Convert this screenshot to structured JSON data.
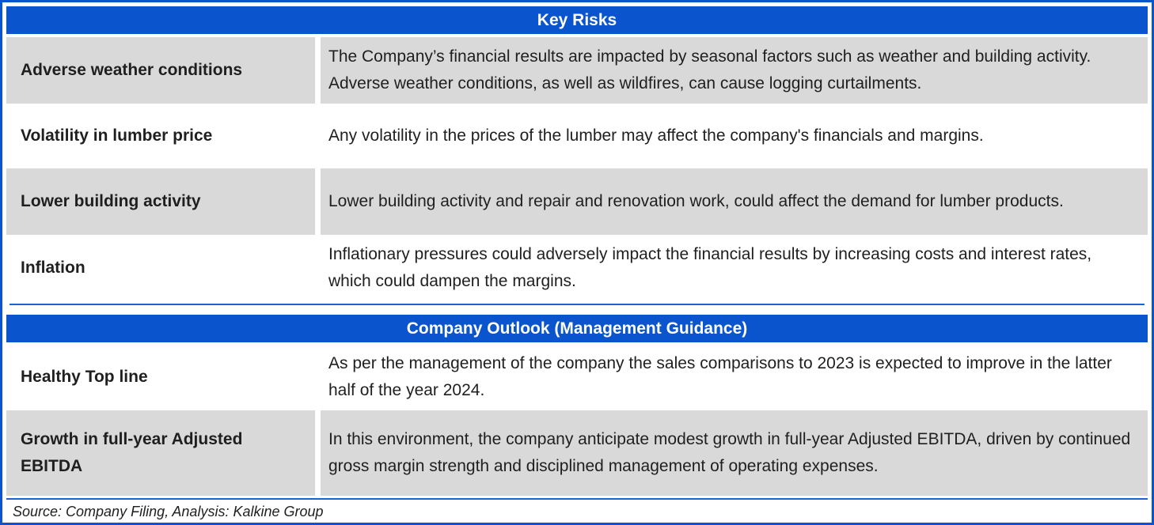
{
  "colors": {
    "header_bg": "#0a54ce",
    "row_gray": "#d9d9d9",
    "border_blue": "#0a54ce",
    "separator_blue": "#1c63d2",
    "header_text": "#ffffff",
    "body_text": "#1f1f1f"
  },
  "sections": [
    {
      "title": "Key Risks",
      "rows": [
        {
          "label": "Adverse weather conditions",
          "description": "The Company’s financial results are impacted by seasonal factors such as weather and building activity. Adverse weather conditions, as well as wildfires, can cause logging curtailments."
        },
        {
          "label": "Volatility in lumber price",
          "description": "Any volatility in the prices of the lumber may affect the company's financials and margins."
        },
        {
          "label": "Lower building activity",
          "description": "Lower building activity and repair and renovation work, could affect the demand for lumber products."
        },
        {
          "label": "Inflation",
          "description": "Inflationary pressures could adversely impact the financial results by increasing costs and interest rates, which could dampen the margins."
        }
      ]
    },
    {
      "title": "Company Outlook (Management Guidance)",
      "rows": [
        {
          "label": "Healthy Top line",
          "description": "As per the management of the company the sales comparisons to 2023 is expected to improve in the latter half of the year 2024."
        },
        {
          "label": "Growth in full-year Adjusted EBITDA",
          "description": "In this environment, the company anticipate modest growth in full-year Adjusted EBITDA, driven by continued gross margin strength and disciplined management of operating expenses."
        }
      ]
    }
  ],
  "footer": {
    "source": "Source: Company Filing, Analysis: Kalkine Group"
  }
}
